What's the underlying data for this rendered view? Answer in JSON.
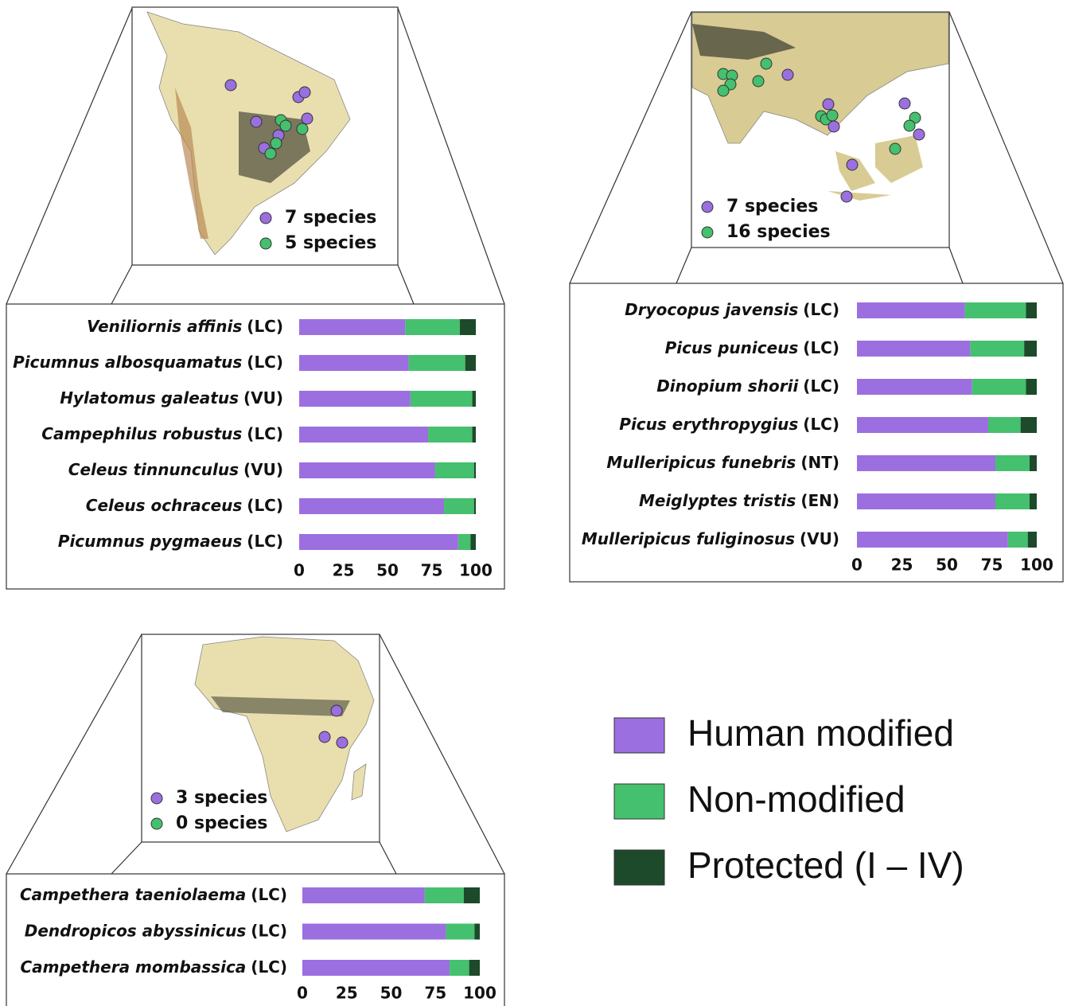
{
  "legend": [
    {
      "name": "Human modified",
      "color": "#9b6fe0"
    },
    {
      "name": "Non-modified",
      "color": "#45c06e"
    },
    {
      "name": "Protected (I – IV)",
      "color": "#1d4a2a"
    }
  ],
  "chart_data": [
    {
      "type": "bar",
      "map_legend": [
        {
          "label": "7 species",
          "color": "#9b6fe0"
        },
        {
          "label": "5 species",
          "color": "#45c06e"
        }
      ],
      "categories": [
        "Veniliornis affinis",
        "Picumnus albosquamatus",
        "Hylatomus galeatus",
        "Campephilus robustus",
        "Celeus tinnunculus",
        "Celeus ochraceus",
        "Picumnus pygmaeus"
      ],
      "status": [
        "(LC)",
        "(LC)",
        "(VU)",
        "(LC)",
        "(VU)",
        "(LC)",
        "(LC)"
      ],
      "series": [
        {
          "values": [
            60,
            62,
            63,
            73,
            77,
            82,
            90
          ]
        },
        {
          "values": [
            31,
            32,
            35,
            25,
            22,
            17,
            7
          ]
        },
        {
          "values": [
            9,
            6,
            2,
            2,
            1,
            1,
            3
          ]
        }
      ],
      "xlim": [
        0,
        100
      ],
      "xticks": [
        0,
        25,
        50,
        75,
        100
      ]
    },
    {
      "type": "bar",
      "map_legend": [
        {
          "label": "7 species",
          "color": "#9b6fe0"
        },
        {
          "label": "16 species",
          "color": "#45c06e"
        }
      ],
      "categories": [
        "Dryocopus javensis",
        "Picus puniceus",
        "Dinopium shorii",
        "Picus erythropygius",
        "Mulleripicus funebris",
        "Meiglyptes tristis",
        "Mulleripicus fuliginosus"
      ],
      "status": [
        "(LC)",
        "(LC)",
        "(LC)",
        "(LC)",
        "(NT)",
        "(EN)",
        "(VU)"
      ],
      "series": [
        {
          "values": [
            60,
            63,
            64,
            73,
            77,
            77,
            84
          ]
        },
        {
          "values": [
            34,
            30,
            30,
            18,
            19,
            19,
            11
          ]
        },
        {
          "values": [
            6,
            7,
            6,
            9,
            4,
            4,
            5
          ]
        }
      ],
      "xlim": [
        0,
        100
      ],
      "xticks": [
        0,
        25,
        50,
        75,
        100
      ]
    },
    {
      "type": "bar",
      "map_legend": [
        {
          "label": "3 species",
          "color": "#9b6fe0"
        },
        {
          "label": "0 species",
          "color": "#45c06e"
        }
      ],
      "categories": [
        "Campethera taeniolaema",
        "Dendropicos abyssinicus",
        "Campethera mombassica"
      ],
      "status": [
        "(LC)",
        "(LC)",
        "(LC)"
      ],
      "series": [
        {
          "values": [
            69,
            81,
            83
          ]
        },
        {
          "values": [
            22,
            16,
            11
          ]
        },
        {
          "values": [
            9,
            3,
            6
          ]
        }
      ],
      "xlim": [
        0,
        100
      ],
      "xticks": [
        0,
        25,
        50,
        75,
        100
      ]
    }
  ]
}
